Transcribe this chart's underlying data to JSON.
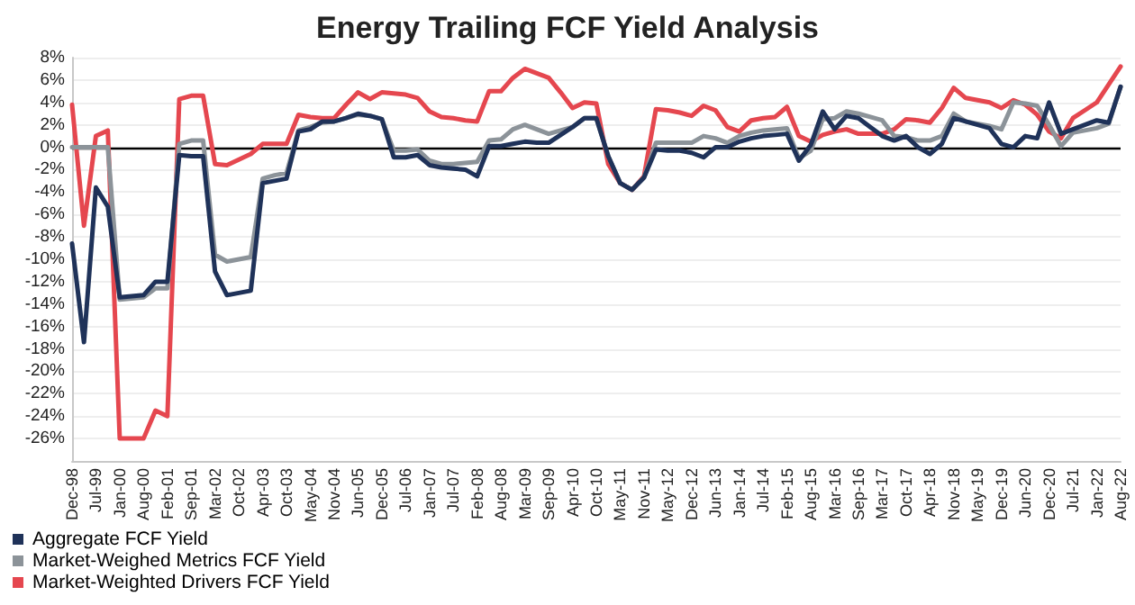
{
  "chart_data": {
    "type": "line",
    "title": "Energy Trailing FCF Yield Analysis",
    "categories": [
      "Dec-98",
      null,
      "Jul-99",
      null,
      "Jan-00",
      null,
      "Aug-00",
      null,
      "Feb-01",
      null,
      "Sep-01",
      null,
      "Mar-02",
      null,
      "Oct-02",
      null,
      "Apr-03",
      null,
      "Oct-03",
      null,
      "May-04",
      null,
      "Nov-04",
      null,
      "Jun-05",
      null,
      "Dec-05",
      null,
      "Jul-06",
      null,
      "Jan-07",
      null,
      "Jul-07",
      null,
      "Feb-08",
      null,
      "Aug-08",
      null,
      "Mar-09",
      null,
      "Sep-09",
      null,
      "Apr-10",
      null,
      "Oct-10",
      null,
      "May-11",
      null,
      "Nov-11",
      null,
      "May-12",
      null,
      "Dec-12",
      null,
      "Jun-13",
      null,
      "Jan-14",
      null,
      "Jul-14",
      null,
      "Feb-15",
      null,
      "Aug-15",
      null,
      "Mar-16",
      null,
      "Sep-16",
      null,
      "Mar-17",
      null,
      "Oct-17",
      null,
      "Apr-18",
      null,
      "Nov-18",
      null,
      "May-19",
      null,
      "Dec-19",
      null,
      "Jun-20",
      null,
      "Dec-20",
      null,
      "Jul-21",
      null,
      "Jan-22",
      null,
      "Aug-22"
    ],
    "series": [
      {
        "name": "Aggregate FCF Yield",
        "color": "#1f3259",
        "values": [
          -8.6,
          -17.4,
          -3.6,
          -5.3,
          -13.4,
          -13.3,
          -13.2,
          -12,
          -12,
          -0.7,
          -0.8,
          -0.8,
          -11.1,
          -13.2,
          -13,
          -12.8,
          -3.2,
          -3,
          -2.8,
          1.4,
          1.6,
          2.3,
          2.3,
          2.6,
          3,
          2.8,
          2.5,
          -0.9,
          -0.9,
          -0.7,
          -1.6,
          -1.8,
          -1.9,
          -2,
          -2.6,
          0.1,
          0.1,
          0.3,
          0.5,
          0.4,
          0.4,
          1.1,
          1.8,
          2.6,
          2.6,
          -0.8,
          -3.2,
          -3.8,
          -2.7,
          -0.2,
          -0.3,
          -0.3,
          -0.5,
          -0.9,
          0,
          0,
          0.5,
          0.8,
          1,
          1.1,
          1.2,
          -1.2,
          0.2,
          3.2,
          1.6,
          2.8,
          2.6,
          1.8,
          1,
          0.6,
          1,
          0,
          -0.6,
          0.3,
          2.6,
          2.3,
          2,
          1.7,
          0.3,
          0,
          1,
          0.8,
          4,
          1.2,
          1.6,
          2,
          2.4,
          2.2,
          5.4
        ]
      },
      {
        "name": "Market-Weighed Metrics FCF Yield",
        "color": "#8c9399",
        "values": [
          0,
          0,
          0,
          0,
          -13.6,
          -13.5,
          -13.4,
          -12.6,
          -12.6,
          0.3,
          0.6,
          0.6,
          -9.6,
          -10.2,
          -10,
          -9.8,
          -2.8,
          -2.5,
          -2.3,
          1.5,
          1.8,
          2.2,
          2.3,
          2.6,
          2.9,
          2.8,
          2.5,
          -0.3,
          -0.3,
          -0.2,
          -1.2,
          -1.5,
          -1.5,
          -1.4,
          -1.3,
          0.6,
          0.7,
          1.6,
          2,
          1.6,
          1.2,
          1.5,
          1.8,
          2.6,
          2.6,
          -0.8,
          -3.2,
          -3.8,
          -2.7,
          0.4,
          0.4,
          0.4,
          0.4,
          1,
          0.8,
          0.4,
          1,
          1.3,
          1.5,
          1.6,
          1.7,
          -1,
          -0.3,
          2.5,
          2.6,
          3.2,
          3,
          2.7,
          2.4,
          1,
          0.9,
          0.6,
          0.6,
          1,
          3,
          2.3,
          2.1,
          1.9,
          1.6,
          4,
          3.9,
          3.7,
          2,
          0.1,
          1.3,
          1.5,
          1.7,
          2.1,
          5.4
        ]
      },
      {
        "name": "Market-Weighted Drivers FCF Yield",
        "color": "#e5474f",
        "values": [
          3.8,
          -7,
          1,
          1.5,
          -26,
          -26,
          -26,
          -23.5,
          -24,
          4.3,
          4.6,
          4.6,
          -1.5,
          -1.6,
          -1.1,
          -0.6,
          0.3,
          0.3,
          0.3,
          2.9,
          2.7,
          2.6,
          2.6,
          3.8,
          4.9,
          4.3,
          4.9,
          4.8,
          4.7,
          4.4,
          3.2,
          2.7,
          2.6,
          2.4,
          2.3,
          5,
          5,
          6.2,
          7,
          6.6,
          6.2,
          4.9,
          3.5,
          4,
          3.9,
          -1.5,
          -3.2,
          -3.8,
          -2.6,
          3.4,
          3.3,
          3.1,
          2.8,
          3.7,
          3.3,
          1.8,
          1.4,
          2.4,
          2.6,
          2.7,
          3.6,
          1,
          0.5,
          1.1,
          1.4,
          1.6,
          1.2,
          1.2,
          1.2,
          1.6,
          2.5,
          2.4,
          2.2,
          3.5,
          5.3,
          4.4,
          4.2,
          4,
          3.5,
          4.2,
          3.8,
          2.9,
          1.4,
          0.8,
          2.6,
          3.3,
          4,
          5.6,
          7.2
        ]
      }
    ],
    "ylim": [
      -28,
      8
    ],
    "yticks": [
      {
        "value": -26,
        "label": "-26%"
      },
      {
        "value": -24,
        "label": "-24%"
      },
      {
        "value": -22,
        "label": "-22%"
      },
      {
        "value": -20,
        "label": "-20%"
      },
      {
        "value": -18,
        "label": "-18%"
      },
      {
        "value": -16,
        "label": "-16%"
      },
      {
        "value": -14,
        "label": "-14%"
      },
      {
        "value": -12,
        "label": "-12%"
      },
      {
        "value": -10,
        "label": "-10%"
      },
      {
        "value": -8,
        "label": "-8%"
      },
      {
        "value": -6,
        "label": "-6%"
      },
      {
        "value": -4,
        "label": "-4%"
      },
      {
        "value": -2,
        "label": "-2%"
      },
      {
        "value": 0,
        "label": "0%"
      },
      {
        "value": 2,
        "label": "2%"
      },
      {
        "value": 4,
        "label": "4%"
      },
      {
        "value": 6,
        "label": "6%"
      },
      {
        "value": 8,
        "label": "8%"
      }
    ],
    "ref_lines": [
      {
        "axis": "y",
        "value": 0,
        "color": "#000000"
      }
    ],
    "grid": "y",
    "legend": "bottom left",
    "marker": "none",
    "line_style": "solid"
  }
}
